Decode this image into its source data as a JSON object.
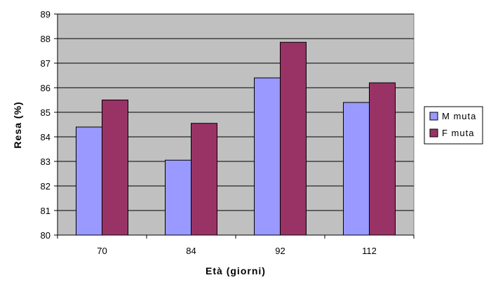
{
  "chart_data": {
    "type": "bar",
    "title": "",
    "xlabel": "Età (giorni)",
    "ylabel": "Resa (%)",
    "categories": [
      "70",
      "84",
      "92",
      "112"
    ],
    "series": [
      {
        "name": "M muta",
        "color": "#9999ff",
        "values": [
          84.4,
          83.05,
          86.4,
          85.4
        ]
      },
      {
        "name": "F muta",
        "color": "#993366",
        "values": [
          85.5,
          84.55,
          87.85,
          86.2
        ]
      }
    ],
    "ylim": [
      80,
      89
    ],
    "yticks": [
      80,
      81,
      82,
      83,
      84,
      85,
      86,
      87,
      88,
      89
    ],
    "grid": true,
    "plot_background": "#c0c0c0",
    "legend_position": "right"
  }
}
